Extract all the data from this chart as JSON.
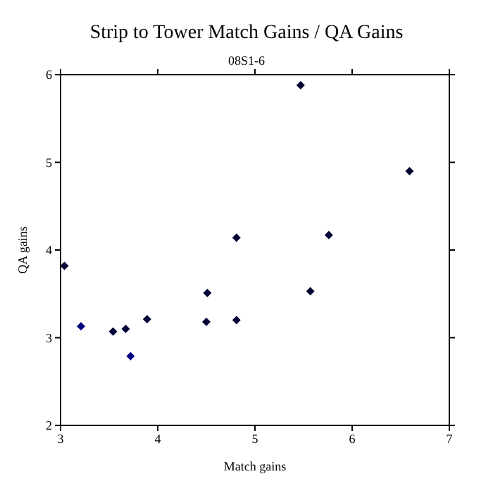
{
  "chart_data": {
    "type": "scatter",
    "title": "Strip to Tower Match Gains / QA Gains",
    "subtitle": "08S1-6",
    "xlabel": "Match gains",
    "ylabel": "QA gains",
    "x": [
      3.04,
      3.21,
      3.54,
      3.67,
      3.72,
      3.89,
      4.5,
      4.51,
      4.81,
      4.81,
      5.47,
      5.57,
      5.76,
      6.59
    ],
    "values": [
      3.82,
      3.13,
      3.07,
      3.1,
      2.79,
      3.21,
      3.18,
      3.51,
      4.14,
      3.2,
      5.88,
      3.53,
      4.17,
      4.9
    ],
    "colors": [
      "#000033",
      "#000080",
      "#000033",
      "#000033",
      "#000080",
      "#000033",
      "#000033",
      "#000033",
      "#000033",
      "#000033",
      "#000033",
      "#000033",
      "#000033",
      "#000033"
    ],
    "xlim": [
      3,
      7
    ],
    "xticks": [
      3,
      4,
      5,
      6,
      7
    ],
    "ylim": [
      2,
      6
    ],
    "yticks": [
      2,
      3,
      4,
      5,
      6
    ],
    "marker": "diamond"
  }
}
